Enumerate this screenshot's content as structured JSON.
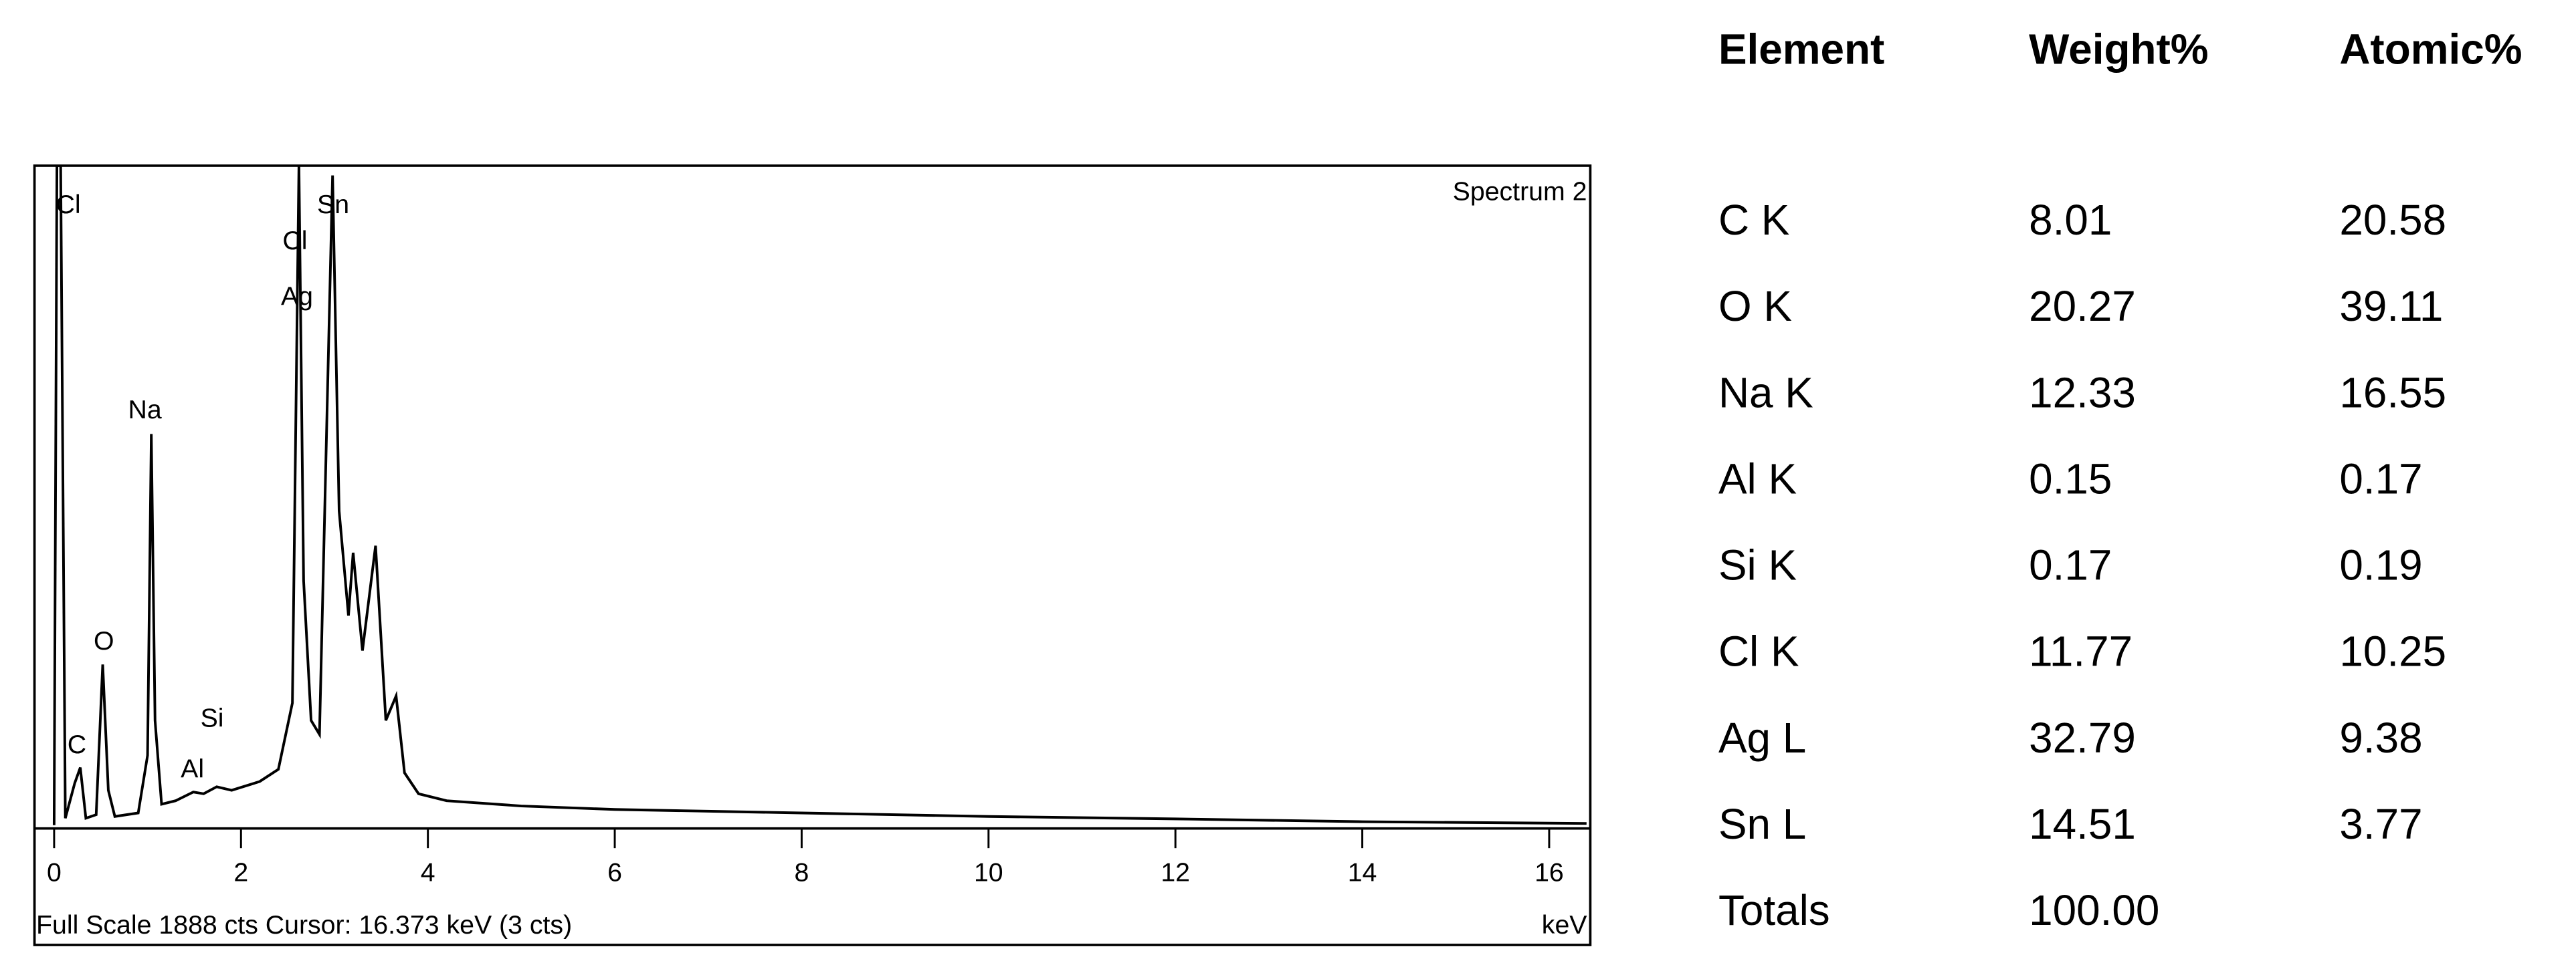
{
  "chart_data": {
    "type": "line",
    "title": "Spectrum 2",
    "footer": "Full Scale 1888 cts  Cursor: 16.373 keV (3 cts)",
    "x_label": "keV",
    "annotations": [
      "Cl",
      "C",
      "O",
      "Na",
      "Al",
      "Si",
      "Ag",
      "Cl",
      "Sn"
    ],
    "x": [
      0.0,
      0.03,
      0.07,
      0.12,
      0.22,
      0.28,
      0.34,
      0.45,
      0.52,
      0.58,
      0.65,
      0.9,
      1.0,
      1.04,
      1.08,
      1.15,
      1.3,
      1.49,
      1.6,
      1.74,
      1.9,
      2.2,
      2.4,
      2.55,
      2.62,
      2.67,
      2.75,
      2.84,
      2.98,
      3.05,
      3.15,
      3.2,
      3.3,
      3.44,
      3.55,
      3.66,
      3.75,
      3.9,
      4.2,
      5,
      6,
      8,
      10,
      12,
      14,
      16.4
    ],
    "series": [
      {
        "name": "Spectrum 2",
        "color": "#000000",
        "values": [
          0,
          1888,
          1888,
          20,
          120,
          165,
          20,
          30,
          460,
          100,
          25,
          35,
          200,
          1120,
          300,
          60,
          70,
          95,
          90,
          110,
          100,
          125,
          160,
          350,
          1888,
          700,
          300,
          260,
          1860,
          900,
          600,
          780,
          500,
          800,
          300,
          370,
          150,
          90,
          70,
          55,
          45,
          35,
          25,
          18,
          10,
          5
        ]
      }
    ],
    "xlim": [
      -0.21,
      16.44
    ],
    "ylim": [
      0,
      1888
    ],
    "xticks": [
      0,
      2,
      4,
      6,
      8,
      10,
      12,
      14,
      16
    ]
  },
  "table": {
    "header": [
      "Element",
      "Weight%",
      "Atomic%"
    ],
    "rows": [
      [
        "C K",
        "8.01",
        "20.58"
      ],
      [
        "O K",
        "20.27",
        "39.11"
      ],
      [
        "Na K",
        "12.33",
        "16.55"
      ],
      [
        "Al K",
        "0.15",
        "0.17"
      ],
      [
        "Si K",
        "0.17",
        "0.19"
      ],
      [
        "Cl K",
        "11.77",
        "10.25"
      ],
      [
        "Ag L",
        "32.79",
        "9.38"
      ],
      [
        "Sn L",
        "14.51",
        "3.77"
      ],
      [
        "Totals",
        "100.00"
      ]
    ]
  }
}
